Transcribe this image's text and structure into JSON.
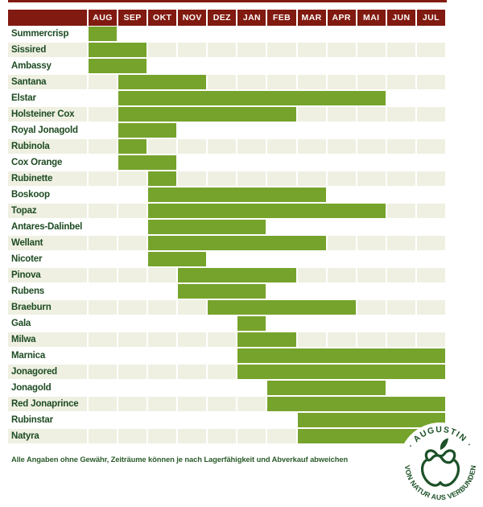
{
  "header": {
    "months": [
      "AUG",
      "SEP",
      "OKT",
      "NOV",
      "DEZ",
      "JAN",
      "FEB",
      "MAR",
      "APR",
      "MAI",
      "JUN",
      "JUL"
    ]
  },
  "chart_data": {
    "type": "bar",
    "subtype": "horizontal-availability-gantt",
    "title": "",
    "x_categories": [
      "AUG",
      "SEP",
      "OKT",
      "NOV",
      "DEZ",
      "JAN",
      "FEB",
      "MAR",
      "APR",
      "MAI",
      "JUN",
      "JUL"
    ],
    "categories": [
      "Summercrisp",
      "Sissired",
      "Ambassy",
      "Santana",
      "Elstar",
      "Holsteiner Cox",
      "Royal Jonagold",
      "Rubinola",
      "Cox Orange",
      "Rubinette",
      "Boskoop",
      "Topaz",
      "Antares-Dalinbel",
      "Wellant",
      "Nicoter",
      "Pinova",
      "Rubens",
      "Braeburn",
      "Gala",
      "Milwa",
      "Marnica",
      "Jonagored",
      "Jonagold",
      "Red Jonaprince",
      "Rubinstar",
      "Natyra"
    ],
    "rows": [
      {
        "label": "Summercrisp",
        "start": "AUG",
        "end": "AUG"
      },
      {
        "label": "Sissired",
        "start": "AUG",
        "end": "SEP"
      },
      {
        "label": "Ambassy",
        "start": "AUG",
        "end": "SEP"
      },
      {
        "label": "Santana",
        "start": "SEP",
        "end": "NOV"
      },
      {
        "label": "Elstar",
        "start": "SEP",
        "end": "MAI"
      },
      {
        "label": "Holsteiner Cox",
        "start": "SEP",
        "end": "FEB"
      },
      {
        "label": "Royal Jonagold",
        "start": "SEP",
        "end": "OKT"
      },
      {
        "label": "Rubinola",
        "start": "SEP",
        "end": "SEP"
      },
      {
        "label": "Cox Orange",
        "start": "SEP",
        "end": "OKT"
      },
      {
        "label": "Rubinette",
        "start": "OKT",
        "end": "OKT"
      },
      {
        "label": "Boskoop",
        "start": "OKT",
        "end": "MAR"
      },
      {
        "label": "Topaz",
        "start": "OKT",
        "end": "MAI"
      },
      {
        "label": "Antares-Dalinbel",
        "start": "OKT",
        "end": "JAN"
      },
      {
        "label": "Wellant",
        "start": "OKT",
        "end": "MAR"
      },
      {
        "label": "Nicoter",
        "start": "OKT",
        "end": "NOV"
      },
      {
        "label": "Pinova",
        "start": "NOV",
        "end": "FEB"
      },
      {
        "label": "Rubens",
        "start": "NOV",
        "end": "JAN"
      },
      {
        "label": "Braeburn",
        "start": "DEZ",
        "end": "APR"
      },
      {
        "label": "Gala",
        "start": "JAN",
        "end": "JAN"
      },
      {
        "label": "Milwa",
        "start": "JAN",
        "end": "FEB"
      },
      {
        "label": "Marnica",
        "start": "JAN",
        "end": "JUL"
      },
      {
        "label": "Jonagored",
        "start": "JAN",
        "end": "JUL"
      },
      {
        "label": "Jonagold",
        "start": "FEB",
        "end": "MAI"
      },
      {
        "label": "Red Jonaprince",
        "start": "FEB",
        "end": "JUL"
      },
      {
        "label": "Rubinstar",
        "start": "MAR",
        "end": "JUL"
      },
      {
        "label": "Natyra",
        "start": "MAR",
        "end": "JUL"
      }
    ],
    "legend": null,
    "grid": "month columns with white separators, alternating row stripes"
  },
  "footer": {
    "disclaimer": "Alle Angaben ohne Gewähr, Zeiträume können je nach Lagerfähigkeit und Abverkauf abweichen"
  },
  "logo": {
    "brand": "· AUGUSTIN ·",
    "tagline": "VON NATUR AUS VERBUNDEN",
    "icon": "apple-infinity-icon"
  },
  "colors": {
    "header_bg": "#811a10",
    "bar_green": "#76a32c",
    "row_stripe": "#eff0e2",
    "label_text": "#1d4b22",
    "footer_text": "#2b5c2b",
    "logo_green": "#1d5128"
  }
}
